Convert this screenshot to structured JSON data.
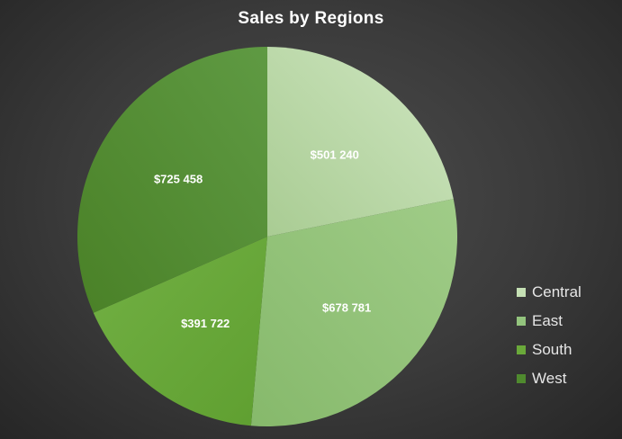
{
  "chart_data": {
    "type": "pie",
    "title": "Sales by Regions",
    "categories": [
      "Central",
      "East",
      "South",
      "West"
    ],
    "values": [
      501240,
      678781,
      391722,
      725458
    ],
    "data_labels": [
      "$501 240",
      "$678 781",
      "$391 722",
      "$725 458"
    ],
    "colors": [
      "#c5e0b4",
      "#93c47d",
      "#6aa93a",
      "#4f8a2e"
    ],
    "start_angle_deg": 0,
    "direction": "clockwise",
    "legend_position": "right"
  }
}
